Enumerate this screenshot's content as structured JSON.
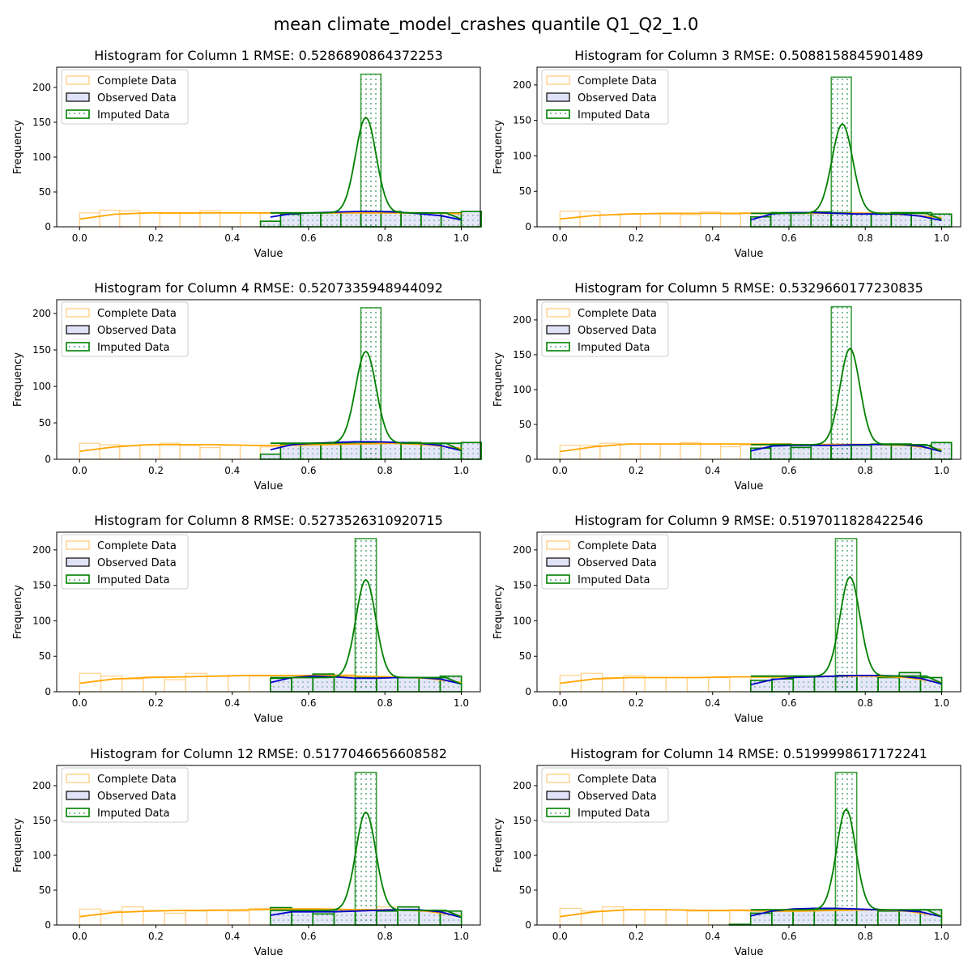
{
  "figure_title": "mean climate_model_crashes quantile Q1_Q2_1.0",
  "colors": {
    "complete": "#ffa500",
    "complete_edge": "#ffd089",
    "observed_fill": "#e0e3f8",
    "observed_edge": "#000000",
    "imputed": "#008000",
    "kde_observed": "#0000cd",
    "kde_complete": "#ffa500"
  },
  "chart_data": [
    {
      "type": "bar",
      "title": "Histogram for Column 1 RMSE: 0.5286890864372253",
      "xlabel": "Value",
      "ylabel": "Frequency",
      "xlim": [
        -0.06,
        1.05
      ],
      "ylim": [
        0,
        229
      ],
      "xticks": [
        0.0,
        0.2,
        0.4,
        0.6,
        0.8,
        1.0
      ],
      "yticks": [
        0,
        50,
        100,
        150,
        200
      ],
      "legend": [
        "Complete Data",
        "Observed Data",
        "Imputed Data"
      ],
      "legend_loc": "upper-left",
      "complete": {
        "start": 0.0,
        "width": 0.0526,
        "values": [
          20,
          24,
          23,
          20,
          19,
          19,
          23,
          20,
          20,
          19,
          20,
          20,
          20,
          20,
          20,
          21,
          20,
          20,
          20
        ]
      },
      "observed": {
        "start": 0.474,
        "width": 0.0526,
        "values": [
          8,
          18,
          20,
          20,
          21,
          22,
          22,
          20,
          20,
          20,
          22
        ]
      },
      "imputed": {
        "start": 0.737,
        "width": 0.0526,
        "value": 219
      },
      "kde_complete": {
        "start": 0.0,
        "values": [
          11,
          18,
          20,
          20,
          20,
          20,
          20,
          20,
          20,
          20,
          20,
          19
        ]
      },
      "kde_observed": {
        "start": 0.5,
        "values": [
          14,
          19,
          20,
          21,
          22,
          22,
          21,
          19,
          16,
          10
        ]
      },
      "kde_imputed": {
        "peak_x": 0.75,
        "peak": 157,
        "base": 20,
        "sigma": 0.027
      }
    },
    {
      "type": "bar",
      "title": "Histogram for Column 3 RMSE: 0.5088158845901489",
      "xlabel": "Value",
      "ylabel": "Frequency",
      "xlim": [
        -0.06,
        1.05
      ],
      "ylim": [
        0,
        225
      ],
      "xticks": [
        0.0,
        0.2,
        0.4,
        0.6,
        0.8,
        1.0
      ],
      "yticks": [
        0,
        50,
        100,
        150,
        200
      ],
      "legend": [
        "Complete Data",
        "Observed Data",
        "Imputed Data"
      ],
      "legend_loc": "upper-left",
      "complete": {
        "start": 0.0,
        "width": 0.0526,
        "values": [
          22,
          22,
          17,
          18,
          18,
          18,
          17,
          21,
          18,
          20,
          20,
          20,
          20,
          20,
          20,
          20,
          20,
          20,
          18
        ]
      },
      "observed": {
        "start": 0.5,
        "width": 0.0526,
        "values": [
          14,
          20,
          20,
          21,
          20,
          18,
          18,
          20,
          20,
          18
        ]
      },
      "imputed": {
        "start": 0.711,
        "width": 0.0526,
        "value": 211
      },
      "kde_complete": {
        "start": 0.0,
        "values": [
          11,
          16,
          18,
          19,
          19,
          19,
          19,
          19,
          19,
          19,
          17,
          13
        ]
      },
      "kde_observed": {
        "start": 0.5,
        "values": [
          10,
          18,
          20,
          20,
          19,
          18,
          18,
          18,
          15,
          9
        ]
      },
      "kde_imputed": {
        "peak_x": 0.74,
        "peak": 145,
        "base": 19,
        "sigma": 0.027
      }
    },
    {
      "type": "bar",
      "title": "Histogram for Column 4 RMSE: 0.5207335948944092",
      "xlabel": "Value",
      "ylabel": "Frequency",
      "xlim": [
        -0.06,
        1.05
      ],
      "ylim": [
        0,
        219
      ],
      "xticks": [
        0.0,
        0.2,
        0.4,
        0.6,
        0.8,
        1.0
      ],
      "yticks": [
        0,
        50,
        100,
        150,
        200
      ],
      "legend": [
        "Complete Data",
        "Observed Data",
        "Imputed Data"
      ],
      "legend_loc": "upper-left",
      "complete": {
        "start": 0.0,
        "width": 0.0526,
        "values": [
          22,
          20,
          19,
          20,
          22,
          19,
          16,
          19,
          19,
          17,
          20,
          21,
          22,
          22,
          23,
          22,
          20,
          20,
          22
        ]
      },
      "observed": {
        "start": 0.474,
        "width": 0.0526,
        "values": [
          7,
          20,
          21,
          22,
          22,
          23,
          23,
          23,
          20,
          22,
          23
        ]
      },
      "imputed": {
        "start": 0.737,
        "width": 0.0526,
        "value": 208
      },
      "kde_complete": {
        "start": 0.0,
        "values": [
          11,
          17,
          20,
          20,
          20,
          19,
          19,
          20,
          21,
          22,
          20,
          15
        ]
      },
      "kde_observed": {
        "start": 0.5,
        "values": [
          13,
          20,
          22,
          23,
          24,
          24,
          23,
          22,
          19,
          12
        ]
      },
      "kde_imputed": {
        "peak_x": 0.75,
        "peak": 148,
        "base": 22,
        "sigma": 0.027
      }
    },
    {
      "type": "bar",
      "title": "Histogram for Column 5 RMSE: 0.5329660177230835",
      "xlabel": "Value",
      "ylabel": "Frequency",
      "xlim": [
        -0.06,
        1.05
      ],
      "ylim": [
        0,
        229
      ],
      "xticks": [
        0.0,
        0.2,
        0.4,
        0.6,
        0.8,
        1.0
      ],
      "yticks": [
        0,
        50,
        100,
        150,
        200
      ],
      "legend": [
        "Complete Data",
        "Observed Data",
        "Imputed Data"
      ],
      "legend_loc": "upper-left",
      "complete": {
        "start": 0.0,
        "width": 0.0526,
        "values": [
          20,
          20,
          23,
          22,
          22,
          22,
          24,
          22,
          18,
          20,
          20,
          20,
          20,
          22,
          22,
          22,
          22,
          20,
          20
        ]
      },
      "observed": {
        "start": 0.5,
        "width": 0.0526,
        "values": [
          16,
          22,
          17,
          20,
          20,
          20,
          22,
          22,
          20,
          24
        ]
      },
      "imputed": {
        "start": 0.711,
        "width": 0.0526,
        "value": 219
      },
      "kde_complete": {
        "start": 0.0,
        "values": [
          11,
          18,
          22,
          22,
          22,
          22,
          22,
          21,
          21,
          21,
          20,
          14
        ]
      },
      "kde_observed": {
        "start": 0.5,
        "values": [
          12,
          19,
          20,
          20,
          20,
          21,
          21,
          21,
          19,
          11
        ]
      },
      "kde_imputed": {
        "peak_x": 0.76,
        "peak": 159,
        "base": 21,
        "sigma": 0.026
      }
    },
    {
      "type": "bar",
      "title": "Histogram for Column 8 RMSE: 0.5273526310920715",
      "xlabel": "Value",
      "ylabel": "Frequency",
      "xlim": [
        -0.06,
        1.05
      ],
      "ylim": [
        0,
        225
      ],
      "xticks": [
        0.0,
        0.2,
        0.4,
        0.6,
        0.8,
        1.0
      ],
      "yticks": [
        0,
        50,
        100,
        150,
        200
      ],
      "legend": [
        "Complete Data",
        "Observed Data",
        "Imputed Data"
      ],
      "legend_loc": "upper-left",
      "complete": {
        "start": 0.0,
        "width": 0.0556,
        "values": [
          26,
          22,
          18,
          21,
          17,
          26,
          22,
          23,
          22,
          20,
          20,
          22,
          24,
          22,
          20,
          20,
          20,
          20
        ]
      },
      "observed": {
        "start": 0.5,
        "width": 0.0556,
        "values": [
          19,
          20,
          25,
          22,
          20,
          20,
          20,
          20,
          22
        ]
      },
      "imputed": {
        "start": 0.722,
        "width": 0.0556,
        "value": 216
      },
      "kde_complete": {
        "start": 0.0,
        "values": [
          12,
          18,
          20,
          21,
          22,
          23,
          23,
          23,
          22,
          21,
          19,
          13
        ]
      },
      "kde_observed": {
        "start": 0.5,
        "values": [
          13,
          20,
          22,
          21,
          19,
          19,
          20,
          20,
          18,
          11
        ]
      },
      "kde_imputed": {
        "peak_x": 0.75,
        "peak": 158,
        "base": 20,
        "sigma": 0.026
      }
    },
    {
      "type": "bar",
      "title": "Histogram for Column 9 RMSE: 0.5197011828422546",
      "xlabel": "Value",
      "ylabel": "Frequency",
      "xlim": [
        -0.06,
        1.05
      ],
      "ylim": [
        0,
        225
      ],
      "xticks": [
        0.0,
        0.2,
        0.4,
        0.6,
        0.8,
        1.0
      ],
      "yticks": [
        0,
        50,
        100,
        150,
        200
      ],
      "legend": [
        "Complete Data",
        "Observed Data",
        "Imputed Data"
      ],
      "legend_loc": "upper-left",
      "complete": {
        "start": 0.0,
        "width": 0.0556,
        "values": [
          23,
          26,
          20,
          23,
          20,
          20,
          20,
          20,
          21,
          20,
          20,
          22,
          22,
          22,
          22,
          22,
          26,
          20
        ]
      },
      "observed": {
        "start": 0.5,
        "width": 0.0556,
        "values": [
          16,
          18,
          22,
          22,
          23,
          23,
          20,
          27,
          20
        ]
      },
      "imputed": {
        "start": 0.722,
        "width": 0.0556,
        "value": 216
      },
      "kde_complete": {
        "start": 0.0,
        "values": [
          12,
          18,
          20,
          20,
          20,
          21,
          21,
          21,
          22,
          22,
          20,
          13
        ]
      },
      "kde_observed": {
        "start": 0.5,
        "values": [
          10,
          17,
          20,
          21,
          22,
          23,
          23,
          22,
          19,
          11
        ]
      },
      "kde_imputed": {
        "peak_x": 0.76,
        "peak": 162,
        "base": 22,
        "sigma": 0.026
      }
    },
    {
      "type": "bar",
      "title": "Histogram for Column 12 RMSE: 0.5177046656608582",
      "xlabel": "Value",
      "ylabel": "Frequency",
      "xlim": [
        -0.06,
        1.05
      ],
      "ylim": [
        0,
        229
      ],
      "xticks": [
        0.0,
        0.2,
        0.4,
        0.6,
        0.8,
        1.0
      ],
      "yticks": [
        0,
        50,
        100,
        150,
        200
      ],
      "legend": [
        "Complete Data",
        "Observed Data",
        "Imputed Data"
      ],
      "legend_loc": "upper-left",
      "complete": {
        "start": 0.0,
        "width": 0.0556,
        "values": [
          23,
          20,
          26,
          21,
          17,
          20,
          22,
          20,
          24,
          22,
          20,
          20,
          20,
          20,
          26,
          22,
          20,
          18
        ]
      },
      "observed": {
        "start": 0.5,
        "width": 0.0556,
        "values": [
          25,
          19,
          16,
          22,
          22,
          20,
          26,
          20,
          20
        ]
      },
      "imputed": {
        "start": 0.722,
        "width": 0.0556,
        "value": 219
      },
      "kde_complete": {
        "start": 0.0,
        "values": [
          12,
          18,
          20,
          21,
          21,
          22,
          23,
          23,
          22,
          22,
          20,
          13
        ]
      },
      "kde_observed": {
        "start": 0.5,
        "values": [
          14,
          19,
          19,
          19,
          20,
          21,
          22,
          22,
          19,
          11
        ]
      },
      "kde_imputed": {
        "peak_x": 0.75,
        "peak": 162,
        "base": 21,
        "sigma": 0.026
      }
    },
    {
      "type": "bar",
      "title": "Histogram for Column 14 RMSE: 0.5199998617172241",
      "xlabel": "Value",
      "ylabel": "Frequency",
      "xlim": [
        -0.06,
        1.05
      ],
      "ylim": [
        0,
        229
      ],
      "xticks": [
        0.0,
        0.2,
        0.4,
        0.6,
        0.8,
        1.0
      ],
      "yticks": [
        0,
        50,
        100,
        150,
        200
      ],
      "legend": [
        "Complete Data",
        "Observed Data",
        "Imputed Data"
      ],
      "legend_loc": "upper-left",
      "complete": {
        "start": 0.0,
        "width": 0.0556,
        "values": [
          24,
          20,
          26,
          22,
          22,
          22,
          20,
          20,
          22,
          22,
          22,
          22,
          22,
          22,
          22,
          22,
          22,
          20
        ]
      },
      "observed": {
        "start": 0.444,
        "width": 0.0556,
        "values": [
          1,
          17,
          20,
          22,
          22,
          22,
          22,
          20,
          20,
          22
        ]
      },
      "imputed": {
        "start": 0.722,
        "width": 0.0556,
        "value": 219
      },
      "kde_complete": {
        "start": 0.0,
        "values": [
          12,
          19,
          22,
          22,
          21,
          21,
          20,
          20,
          21,
          22,
          20,
          13
        ]
      },
      "kde_observed": {
        "start": 0.5,
        "values": [
          13,
          20,
          23,
          24,
          24,
          23,
          22,
          21,
          19,
          12
        ]
      },
      "kde_imputed": {
        "peak_x": 0.75,
        "peak": 166,
        "base": 22,
        "sigma": 0.025
      }
    }
  ]
}
